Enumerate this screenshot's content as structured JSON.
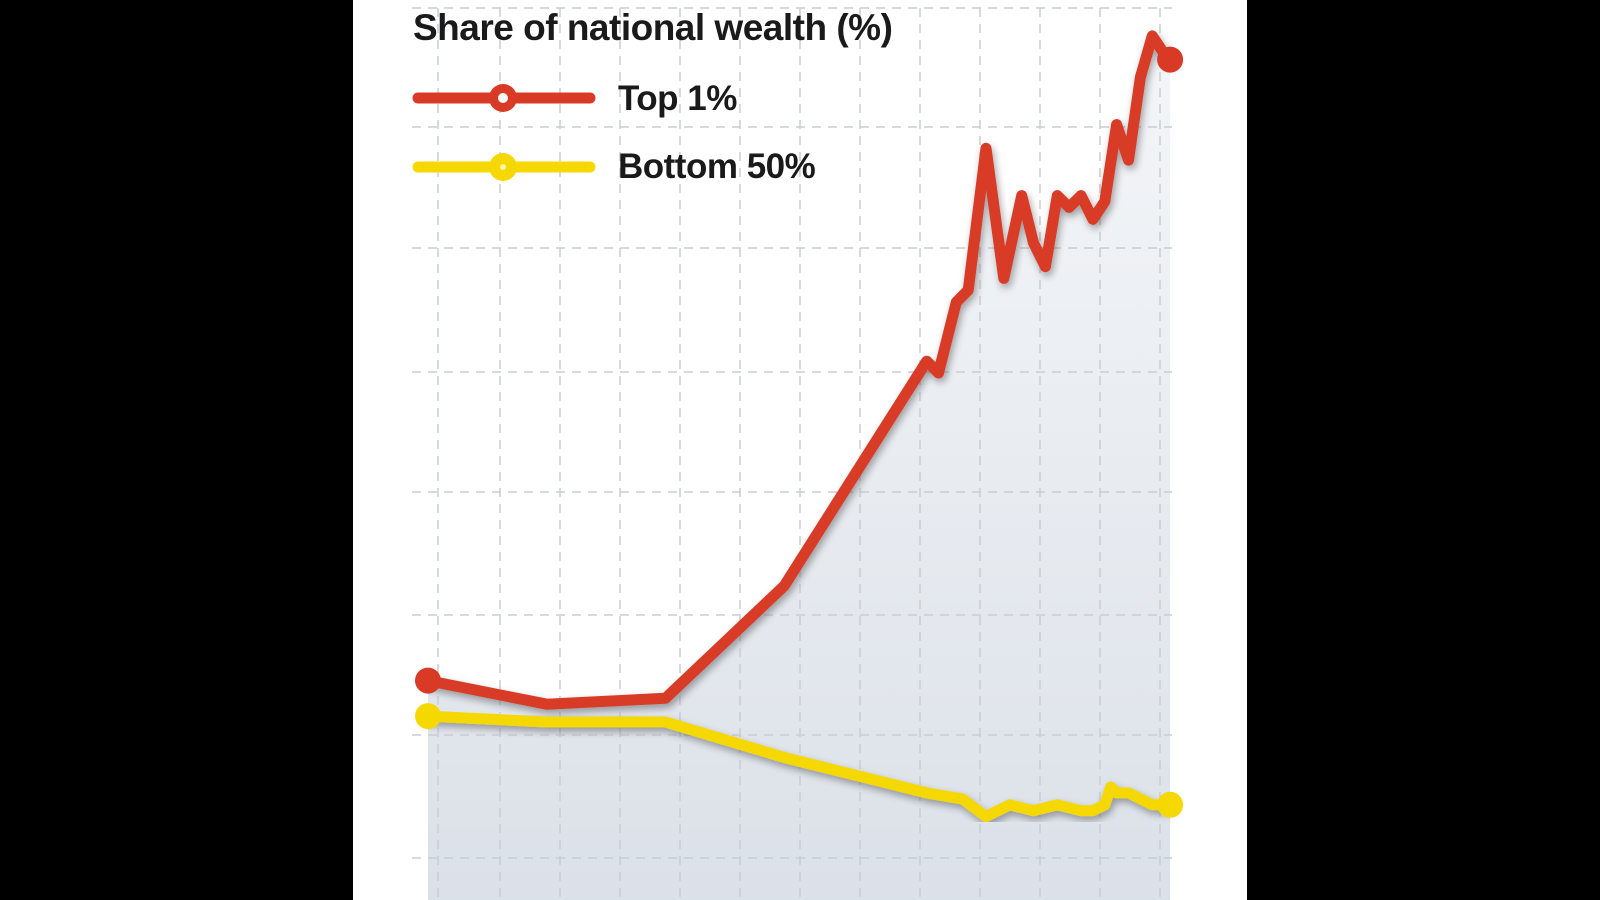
{
  "chart_data": {
    "type": "line",
    "title": "Share of national wealth (%)",
    "xlabel": "",
    "ylabel": "",
    "grid": true,
    "legend_position": "top-left",
    "x_range": [
      0,
      63
    ],
    "y_range": [
      0,
      7
    ],
    "series": [
      {
        "name": "Top 1%",
        "color": "#d83a26",
        "marker": "ring",
        "points": [
          [
            0,
            1.5
          ],
          [
            10,
            1.3
          ],
          [
            20,
            1.35
          ],
          [
            30,
            2.3
          ],
          [
            42,
            4.2
          ],
          [
            43,
            4.1
          ],
          [
            44.5,
            4.7
          ],
          [
            45.5,
            4.8
          ],
          [
            47,
            6.0
          ],
          [
            48.5,
            4.9
          ],
          [
            50,
            5.6
          ],
          [
            51,
            5.2
          ],
          [
            52,
            5.0
          ],
          [
            53,
            5.6
          ],
          [
            54,
            5.5
          ],
          [
            55,
            5.6
          ],
          [
            56,
            5.4
          ],
          [
            57,
            5.55
          ],
          [
            58,
            6.2
          ],
          [
            59,
            5.9
          ],
          [
            60,
            6.6
          ],
          [
            61,
            6.95
          ],
          [
            62,
            6.8
          ],
          [
            62.5,
            6.75
          ]
        ]
      },
      {
        "name": "Bottom 50%",
        "color": "#f5d800",
        "marker": "dot",
        "points": [
          [
            0,
            1.2
          ],
          [
            10,
            1.15
          ],
          [
            20,
            1.15
          ],
          [
            30,
            0.85
          ],
          [
            42,
            0.55
          ],
          [
            45,
            0.5
          ],
          [
            47,
            0.35
          ],
          [
            49,
            0.45
          ],
          [
            51,
            0.4
          ],
          [
            53,
            0.45
          ],
          [
            55,
            0.4
          ],
          [
            56,
            0.4
          ],
          [
            57,
            0.45
          ],
          [
            57.5,
            0.6
          ],
          [
            58,
            0.55
          ],
          [
            59,
            0.55
          ],
          [
            60,
            0.5
          ],
          [
            61,
            0.45
          ],
          [
            62.5,
            0.45
          ]
        ]
      }
    ]
  }
}
